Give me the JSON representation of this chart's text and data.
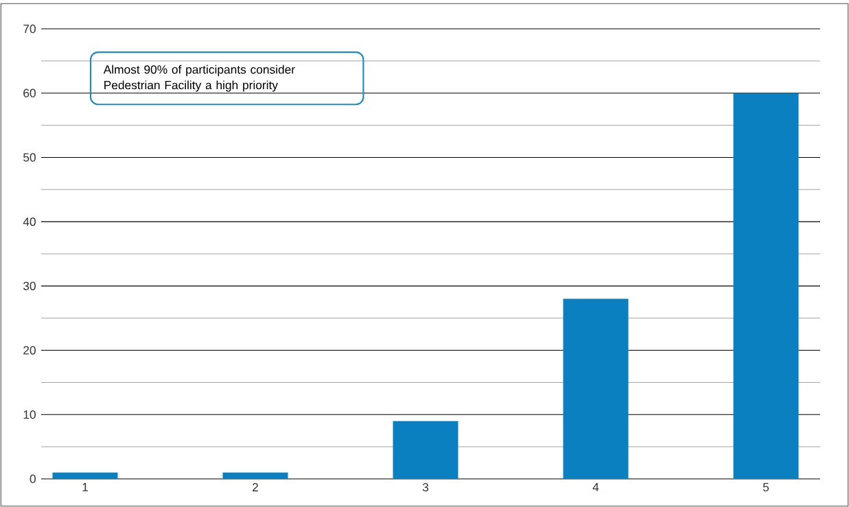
{
  "chart_data": {
    "type": "bar",
    "categories": [
      "1",
      "2",
      "3",
      "4",
      "5"
    ],
    "values": [
      1,
      1,
      9,
      28,
      60
    ],
    "color": "#0a80c0",
    "ylim": [
      0,
      70
    ],
    "yticks": [
      0,
      10,
      20,
      30,
      40,
      50,
      60,
      70
    ],
    "grid": true,
    "annotations": [
      "Almost 90% of participants consider Pedestrian Facility a high priority"
    ]
  }
}
